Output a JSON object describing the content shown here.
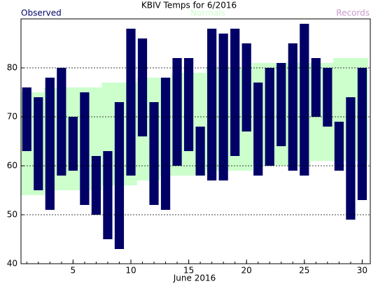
{
  "chart_data": {
    "type": "range_bar",
    "title": "KBIV Temps for 6/2016",
    "x_label": "June 2016",
    "x": [
      1,
      2,
      3,
      4,
      5,
      6,
      7,
      8,
      9,
      10,
      11,
      12,
      13,
      14,
      15,
      16,
      17,
      18,
      19,
      20,
      21,
      22,
      23,
      24,
      25,
      26,
      27,
      28,
      29,
      30
    ],
    "xlim": [
      0.5,
      30.7
    ],
    "xticks": [
      5,
      10,
      15,
      20,
      25,
      30
    ],
    "ylim": [
      40,
      90
    ],
    "yticks": [
      40,
      50,
      60,
      70,
      80
    ],
    "grid": true,
    "series": [
      {
        "name": "Observed",
        "color": "#000066",
        "high": [
          76,
          74,
          78,
          80,
          70,
          75,
          62,
          63,
          73,
          88,
          86,
          73,
          78,
          82,
          82,
          68,
          88,
          87,
          88,
          85,
          77,
          80,
          81,
          85,
          89,
          82,
          80,
          69,
          74,
          80
        ],
        "low": [
          63,
          55,
          51,
          58,
          59,
          52,
          50,
          45,
          43,
          58,
          66,
          52,
          51,
          60,
          63,
          58,
          57,
          57,
          62,
          67,
          58,
          60,
          64,
          59,
          58,
          70,
          68,
          59,
          49,
          53
        ]
      },
      {
        "name": "Normals",
        "color": "#ccffcc",
        "high": [
          75,
          75,
          76,
          76,
          76,
          76,
          76,
          77,
          77,
          77,
          78,
          78,
          78,
          79,
          79,
          79,
          80,
          80,
          80,
          80,
          81,
          81,
          81,
          81,
          81,
          81,
          81,
          82,
          82,
          82
        ],
        "low": [
          54,
          54,
          55,
          55,
          55,
          55,
          55,
          56,
          56,
          56,
          57,
          57,
          58,
          58,
          58,
          58,
          59,
          59,
          59,
          59,
          60,
          60,
          60,
          60,
          60,
          61,
          61,
          61,
          61,
          61
        ]
      },
      {
        "name": "Records",
        "color": "#cc99cc"
      }
    ]
  }
}
